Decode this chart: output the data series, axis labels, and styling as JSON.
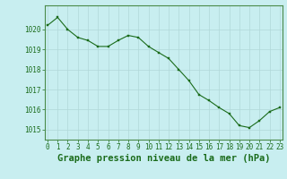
{
  "x": [
    0,
    1,
    2,
    3,
    4,
    5,
    6,
    7,
    8,
    9,
    10,
    11,
    12,
    13,
    14,
    15,
    16,
    17,
    18,
    19,
    20,
    21,
    22,
    23
  ],
  "y": [
    1020.2,
    1020.6,
    1020.0,
    1019.6,
    1019.45,
    1019.15,
    1019.15,
    1019.45,
    1019.7,
    1019.6,
    1019.15,
    1018.85,
    1018.55,
    1018.0,
    1017.45,
    1016.75,
    1016.45,
    1016.1,
    1015.8,
    1015.2,
    1015.1,
    1015.45,
    1015.9,
    1016.1
  ],
  "line_color": "#1a6b1a",
  "marker_color": "#1a6b1a",
  "bg_color": "#c8eef0",
  "grid_color": "#b0d8d8",
  "axis_color": "#4a8a4a",
  "tick_color": "#1a6b1a",
  "label_color": "#1a6b1a",
  "xlabel": "Graphe pression niveau de la mer (hPa)",
  "ylim": [
    1014.5,
    1021.2
  ],
  "yticks": [
    1015,
    1016,
    1017,
    1018,
    1019,
    1020
  ],
  "xticks": [
    0,
    1,
    2,
    3,
    4,
    5,
    6,
    7,
    8,
    9,
    10,
    11,
    12,
    13,
    14,
    15,
    16,
    17,
    18,
    19,
    20,
    21,
    22,
    23
  ],
  "tick_fontsize": 5.5,
  "xlabel_fontsize": 7.5
}
